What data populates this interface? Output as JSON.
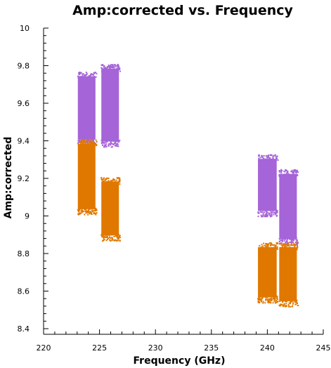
{
  "chart_data": {
    "type": "scatter",
    "title": "Amp:corrected vs. Frequency",
    "xlabel": "Frequency (GHz)",
    "ylabel": "Amp:corrected",
    "xlim": [
      220,
      245
    ],
    "ylim": [
      8.4,
      10
    ],
    "xticks": [
      "220",
      "225",
      "230",
      "235",
      "240",
      "245"
    ],
    "yticks": [
      "8.4",
      "8.6",
      "8.8",
      "9",
      "9.2",
      "9.4",
      "9.6",
      "9.8",
      "10"
    ],
    "grid": false,
    "legend": "none",
    "series": [
      {
        "color": "#a564d8",
        "clusters": [
          {
            "x": [
              223.0,
              224.7
            ],
            "y": [
              9.38,
              9.77
            ]
          },
          {
            "x": [
              225.1,
              226.8
            ],
            "y": [
              9.37,
              9.81
            ]
          },
          {
            "x": [
              239.1,
              240.9
            ],
            "y": [
              9.0,
              9.33
            ]
          },
          {
            "x": [
              241.0,
              242.7
            ],
            "y": [
              8.85,
              9.25
            ]
          }
        ]
      },
      {
        "color": "#e07800",
        "clusters": [
          {
            "x": [
              223.0,
              224.7
            ],
            "y": [
              9.01,
              9.41
            ]
          },
          {
            "x": [
              225.1,
              226.8
            ],
            "y": [
              8.87,
              9.21
            ]
          },
          {
            "x": [
              239.1,
              240.9
            ],
            "y": [
              8.54,
              8.86
            ]
          },
          {
            "x": [
              241.0,
              242.7
            ],
            "y": [
              8.52,
              8.86
            ]
          }
        ]
      }
    ]
  }
}
